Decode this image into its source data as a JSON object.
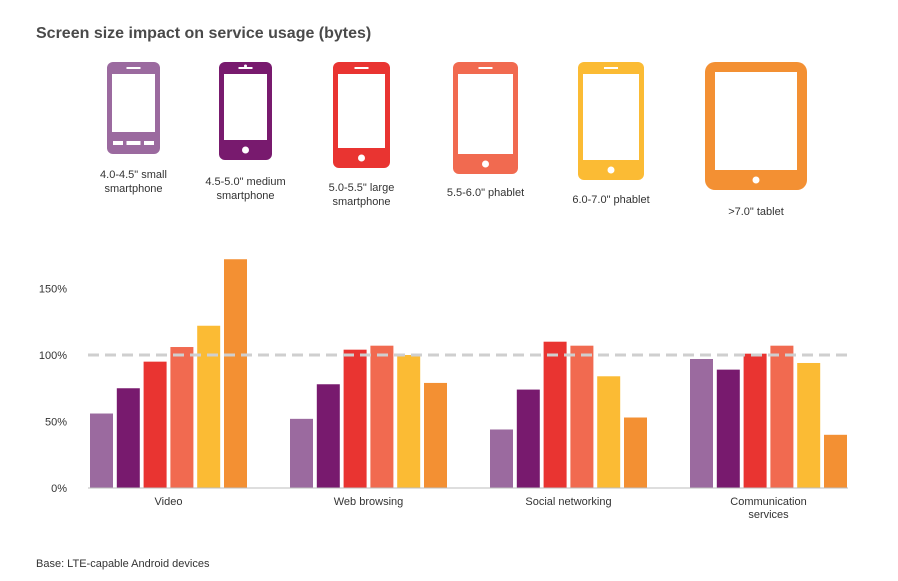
{
  "chart_data": {
    "type": "bar",
    "title": "Screen size impact on service usage (bytes)",
    "categories": [
      "Video",
      "Web browsing",
      "Social networking",
      "Communication services"
    ],
    "series": [
      {
        "name": "4.0-4.5\" small smartphone",
        "color": "#9b6a9f",
        "values": [
          56,
          52,
          44,
          97
        ]
      },
      {
        "name": "4.5-5.0\" medium smartphone",
        "color": "#781a6e",
        "values": [
          75,
          78,
          74,
          89
        ]
      },
      {
        "name": "5.0-5.5\" large smartphone",
        "color": "#e93431",
        "values": [
          95,
          104,
          110,
          101
        ]
      },
      {
        "name": "5.5-6.0\" phablet",
        "color": "#f16a50",
        "values": [
          106,
          107,
          107,
          107
        ]
      },
      {
        "name": "6.0-7.0\" phablet",
        "color": "#fbbb34",
        "values": [
          122,
          100,
          84,
          94
        ]
      },
      {
        "name": ">7.0\" tablet",
        "color": "#f39033",
        "values": [
          172,
          79,
          53,
          40
        ]
      }
    ],
    "yticks": [
      "0%",
      "50%",
      "100%",
      "150%"
    ],
    "ylim": [
      0,
      175
    ],
    "reference_line": 100,
    "ylabel": "",
    "xlabel": ""
  },
  "devices": [
    {
      "label_lines": [
        "4.0-4.5\" small",
        "smartphone"
      ],
      "icon": "small-smartphone-icon",
      "color": "#9b6a9f"
    },
    {
      "label_lines": [
        "4.5-5.0\" medium",
        "smartphone"
      ],
      "icon": "medium-smartphone-icon",
      "color": "#781a6e"
    },
    {
      "label_lines": [
        "5.0-5.5\" large",
        "smartphone"
      ],
      "icon": "large-smartphone-icon",
      "color": "#e93431"
    },
    {
      "label_lines": [
        "5.5-6.0\" phablet"
      ],
      "icon": "phablet-icon",
      "color": "#f16a50"
    },
    {
      "label_lines": [
        "6.0-7.0\" phablet"
      ],
      "icon": "large-phablet-icon",
      "color": "#fbbb34"
    },
    {
      "label_lines": [
        ">7.0\" tablet"
      ],
      "icon": "tablet-icon",
      "color": "#f39033"
    }
  ],
  "category_label_lines": [
    [
      "Video"
    ],
    [
      "Web browsing"
    ],
    [
      "Social networking"
    ],
    [
      "Communication",
      "services"
    ]
  ],
  "base_note": "Base: LTE-capable Android devices"
}
